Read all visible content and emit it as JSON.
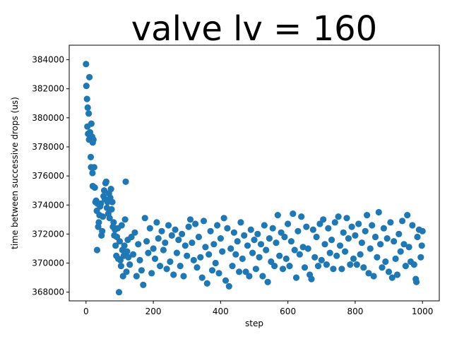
{
  "chart_data": {
    "type": "scatter",
    "title": "valve lv = 160",
    "xlabel": "step",
    "ylabel": "time between successive drops (us)",
    "xlim": [
      -50,
      1050
    ],
    "ylim": [
      367400,
      385000
    ],
    "xticks": [
      0,
      200,
      400,
      600,
      800,
      1000
    ],
    "yticks": [
      368000,
      370000,
      372000,
      374000,
      376000,
      378000,
      380000,
      382000,
      384000
    ],
    "xtick_labels": [
      "0",
      "200",
      "400",
      "600",
      "800",
      "1000"
    ],
    "ytick_labels": [
      "368000",
      "370000",
      "372000",
      "374000",
      "376000",
      "378000",
      "380000",
      "382000",
      "384000"
    ],
    "grid": false,
    "marker_color": "#1f77b4",
    "series": [
      {
        "values_sampled": [
          [
            0,
            383700
          ],
          [
            1,
            382200
          ],
          [
            3,
            381300
          ],
          [
            5,
            380700
          ],
          [
            8,
            380300
          ],
          [
            10,
            382800
          ],
          [
            4,
            379400
          ],
          [
            6,
            378900
          ],
          [
            9,
            378500
          ],
          [
            12,
            379000
          ],
          [
            14,
            377300
          ],
          [
            16,
            379600
          ],
          [
            18,
            378700
          ],
          [
            20,
            378300
          ],
          [
            22,
            378500
          ],
          [
            15,
            376600
          ],
          [
            19,
            376200
          ],
          [
            24,
            376600
          ],
          [
            20,
            375300
          ],
          [
            26,
            375200
          ],
          [
            28,
            374200
          ],
          [
            30,
            374300
          ],
          [
            32,
            373600
          ],
          [
            34,
            374100
          ],
          [
            36,
            372500
          ],
          [
            38,
            372800
          ],
          [
            40,
            373300
          ],
          [
            42,
            373900
          ],
          [
            44,
            374100
          ],
          [
            46,
            371900
          ],
          [
            48,
            372200
          ],
          [
            33,
            370900
          ],
          [
            50,
            373200
          ],
          [
            52,
            374600
          ],
          [
            54,
            375000
          ],
          [
            56,
            374400
          ],
          [
            58,
            375500
          ],
          [
            60,
            375600
          ],
          [
            62,
            373800
          ],
          [
            64,
            374200
          ],
          [
            66,
            373400
          ],
          [
            68,
            374800
          ],
          [
            70,
            373100
          ],
          [
            72,
            374500
          ],
          [
            74,
            375100
          ],
          [
            76,
            373700
          ],
          [
            78,
            374200
          ],
          [
            80,
            372500
          ],
          [
            82,
            372800
          ],
          [
            84,
            371900
          ],
          [
            86,
            372300
          ],
          [
            88,
            371200
          ],
          [
            90,
            370500
          ],
          [
            92,
            371800
          ],
          [
            94,
            372400
          ],
          [
            96,
            370300
          ],
          [
            98,
            368000
          ],
          [
            100,
            371500
          ],
          [
            102,
            370200
          ],
          [
            104,
            369800
          ],
          [
            106,
            372600
          ],
          [
            108,
            370900
          ],
          [
            110,
            369100
          ],
          [
            112,
            370500
          ],
          [
            114,
            371200
          ],
          [
            116,
            373000
          ],
          [
            118,
            375600
          ],
          [
            120,
            369400
          ],
          [
            122,
            370800
          ],
          [
            124,
            371600
          ],
          [
            126,
            370400
          ],
          [
            130,
            369900
          ],
          [
            135,
            371800
          ],
          [
            140,
            370600
          ],
          [
            145,
            372100
          ],
          [
            150,
            369100
          ],
          [
            155,
            371300
          ],
          [
            160,
            370200
          ],
          [
            165,
            369500
          ],
          [
            170,
            368500
          ],
          [
            175,
            373100
          ],
          [
            180,
            371500
          ],
          [
            185,
            370700
          ],
          [
            190,
            372400
          ],
          [
            195,
            369300
          ],
          [
            200,
            371000
          ],
          [
            205,
            370300
          ],
          [
            210,
            372800
          ],
          [
            215,
            371700
          ],
          [
            220,
            369800
          ],
          [
            225,
            372200
          ],
          [
            230,
            370900
          ],
          [
            235,
            371400
          ],
          [
            240,
            369600
          ],
          [
            245,
            372600
          ],
          [
            250,
            370100
          ],
          [
            255,
            371900
          ],
          [
            260,
            369200
          ],
          [
            265,
            372300
          ],
          [
            270,
            370700
          ],
          [
            275,
            371600
          ],
          [
            280,
            369800
          ],
          [
            285,
            372000
          ],
          [
            290,
            369100
          ],
          [
            295,
            371200
          ],
          [
            300,
            370500
          ],
          [
            305,
            372500
          ],
          [
            310,
            373000
          ],
          [
            315,
            371400
          ],
          [
            320,
            370200
          ],
          [
            325,
            372700
          ],
          [
            330,
            369700
          ],
          [
            335,
            371800
          ],
          [
            340,
            370400
          ],
          [
            345,
            369000
          ],
          [
            350,
            372900
          ],
          [
            355,
            371100
          ],
          [
            360,
            368600
          ],
          [
            365,
            370600
          ],
          [
            370,
            372200
          ],
          [
            375,
            369500
          ],
          [
            380,
            371300
          ],
          [
            385,
            370000
          ],
          [
            390,
            372600
          ],
          [
            395,
            369300
          ],
          [
            400,
            371700
          ],
          [
            405,
            370800
          ],
          [
            410,
            373100
          ],
          [
            415,
            368800
          ],
          [
            420,
            372400
          ],
          [
            425,
            368400
          ],
          [
            430,
            371000
          ],
          [
            435,
            369800
          ],
          [
            440,
            372100
          ],
          [
            445,
            370600
          ],
          [
            450,
            371500
          ],
          [
            455,
            369400
          ],
          [
            460,
            372800
          ],
          [
            465,
            370300
          ],
          [
            470,
            371900
          ],
          [
            475,
            369400
          ],
          [
            480,
            371200
          ],
          [
            485,
            369100
          ],
          [
            490,
            372300
          ],
          [
            495,
            370700
          ],
          [
            500,
            371600
          ],
          [
            505,
            369600
          ],
          [
            510,
            372000
          ],
          [
            515,
            370400
          ],
          [
            520,
            371300
          ],
          [
            525,
            369100
          ],
          [
            530,
            372600
          ],
          [
            535,
            370900
          ],
          [
            540,
            368700
          ],
          [
            545,
            371700
          ],
          [
            550,
            370100
          ],
          [
            555,
            372400
          ],
          [
            560,
            369800
          ],
          [
            565,
            371400
          ],
          [
            570,
            373300
          ],
          [
            575,
            370500
          ],
          [
            580,
            372100
          ],
          [
            585,
            369600
          ],
          [
            590,
            371800
          ],
          [
            595,
            370300
          ],
          [
            600,
            372700
          ],
          [
            605,
            369800
          ],
          [
            610,
            371500
          ],
          [
            615,
            373400
          ],
          [
            620,
            370900
          ],
          [
            625,
            369000
          ],
          [
            630,
            372200
          ],
          [
            635,
            370600
          ],
          [
            640,
            373200
          ],
          [
            645,
            371100
          ],
          [
            650,
            369700
          ],
          [
            655,
            372500
          ],
          [
            660,
            371000
          ],
          [
            665,
            369200
          ],
          [
            670,
            368900
          ],
          [
            675,
            372300
          ],
          [
            680,
            370400
          ],
          [
            685,
            371800
          ],
          [
            690,
            369800
          ],
          [
            695,
            372700
          ],
          [
            700,
            370200
          ],
          [
            705,
            373000
          ],
          [
            710,
            371300
          ],
          [
            715,
            369900
          ],
          [
            720,
            372400
          ],
          [
            725,
            370700
          ],
          [
            730,
            371600
          ],
          [
            735,
            369600
          ],
          [
            740,
            372800
          ],
          [
            745,
            370500
          ],
          [
            750,
            373200
          ],
          [
            755,
            371200
          ],
          [
            760,
            369600
          ],
          [
            765,
            372100
          ],
          [
            770,
            370800
          ],
          [
            775,
            373100
          ],
          [
            780,
            371700
          ],
          [
            785,
            369900
          ],
          [
            790,
            372500
          ],
          [
            795,
            370300
          ],
          [
            800,
            371900
          ],
          [
            805,
            369900
          ],
          [
            810,
            372700
          ],
          [
            815,
            370600
          ],
          [
            820,
            371400
          ],
          [
            825,
            369700
          ],
          [
            830,
            372200
          ],
          [
            835,
            373300
          ],
          [
            840,
            369300
          ],
          [
            845,
            371000
          ],
          [
            850,
            372600
          ],
          [
            855,
            369100
          ],
          [
            860,
            371800
          ],
          [
            865,
            370400
          ],
          [
            870,
            373500
          ],
          [
            875,
            371300
          ],
          [
            880,
            369700
          ],
          [
            885,
            372400
          ],
          [
            890,
            370100
          ],
          [
            895,
            371700
          ],
          [
            900,
            369400
          ],
          [
            905,
            372800
          ],
          [
            910,
            369000
          ],
          [
            915,
            371500
          ],
          [
            920,
            370300
          ],
          [
            925,
            369200
          ],
          [
            930,
            372000
          ],
          [
            935,
            370800
          ],
          [
            940,
            372900
          ],
          [
            945,
            371300
          ],
          [
            950,
            369800
          ],
          [
            955,
            373300
          ],
          [
            960,
            371100
          ],
          [
            965,
            370100
          ],
          [
            970,
            372600
          ],
          [
            975,
            369900
          ],
          [
            980,
            368900
          ],
          [
            982,
            368700
          ],
          [
            985,
            371800
          ],
          [
            990,
            372300
          ],
          [
            995,
            370400
          ],
          [
            998,
            371200
          ],
          [
            1000,
            372200
          ]
        ]
      }
    ]
  }
}
